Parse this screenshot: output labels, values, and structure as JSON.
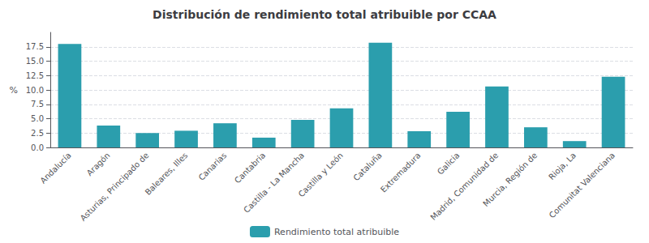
{
  "chart_data": {
    "type": "bar",
    "title": "Distribución de rendimiento total atribuible por CCAA",
    "ylabel": "%",
    "categories": [
      "Andalucía",
      "Aragón",
      "Asturias, Principado de",
      "Baleares, Illes",
      "Canarias",
      "Cantabria",
      "Castilla - La Mancha",
      "Castilla y León",
      "Cataluña",
      "Extremadura",
      "Galicia",
      "Madrid, Comunidad de",
      "Murcia, Región de",
      "Rioja, La",
      "Comunitat Valenciana"
    ],
    "series": [
      {
        "name": "Rendimiento total atribuible",
        "color": "#2B9EAD",
        "values": [
          18.0,
          3.8,
          2.5,
          2.9,
          4.2,
          1.7,
          4.8,
          6.8,
          18.2,
          2.8,
          6.2,
          10.6,
          3.5,
          1.1,
          12.3
        ]
      }
    ],
    "ylim": [
      0,
      20
    ],
    "yticks": [
      {
        "value": 0.0,
        "label": "0.0"
      },
      2.5,
      {
        "value": 5.0,
        "label": "5.0"
      },
      7.5,
      {
        "value": 10.0,
        "label": "10.0"
      },
      12.5,
      {
        "value": 15.0,
        "label": "15.0"
      },
      17.5
    ],
    "grid": true,
    "legend": "bottom"
  }
}
